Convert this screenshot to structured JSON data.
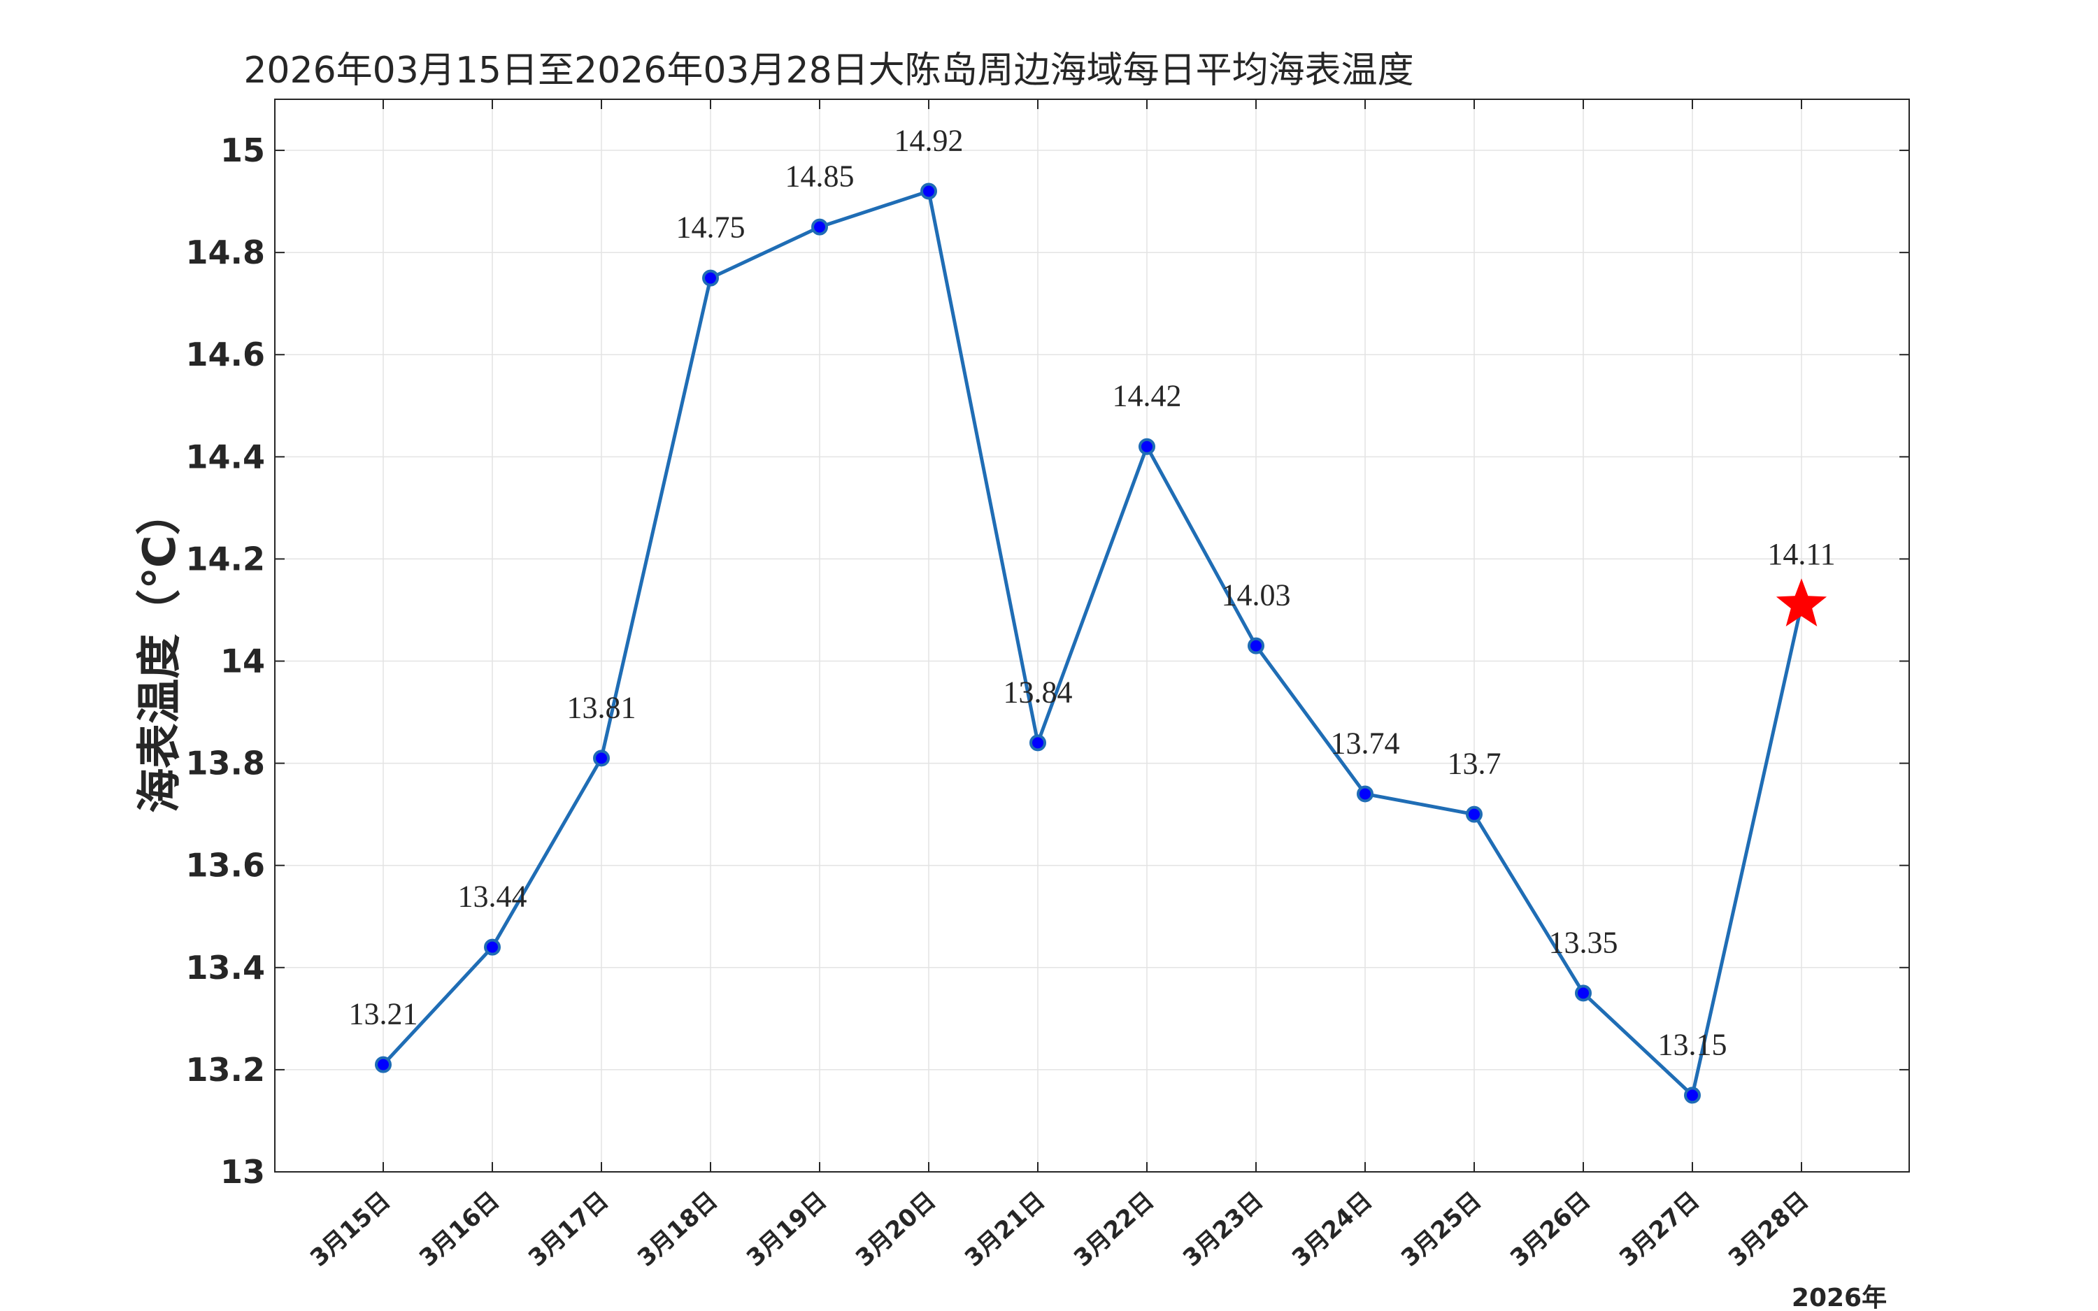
{
  "chart_data": {
    "type": "line",
    "title": "2026年03月15日至2026年03月28日大陈岛周边海域每日平均海表温度",
    "xlabel": "2026年",
    "ylabel": "海表温度（℃）",
    "categories": [
      "3月15日",
      "3月16日",
      "3月17日",
      "3月18日",
      "3月19日",
      "3月20日",
      "3月21日",
      "3月22日",
      "3月23日",
      "3月24日",
      "3月25日",
      "3月26日",
      "3月27日",
      "3月28日"
    ],
    "values": [
      13.21,
      13.44,
      13.81,
      14.75,
      14.85,
      14.92,
      13.84,
      14.42,
      14.03,
      13.74,
      13.7,
      13.35,
      13.15,
      14.11
    ],
    "data_labels": [
      "13.21",
      "13.44",
      "13.81",
      "14.75",
      "14.85",
      "14.92",
      "13.84",
      "14.42",
      "14.03",
      "13.74",
      "13.7",
      "13.35",
      "13.15",
      "14.11"
    ],
    "highlight_index": 13,
    "ylim": [
      13,
      15.1
    ],
    "yticks": [
      "13",
      "13.2",
      "13.4",
      "13.6",
      "13.8",
      "14",
      "14.2",
      "14.4",
      "14.6",
      "14.8",
      "15"
    ],
    "grid": true,
    "colors": {
      "line": "#1f6db5",
      "marker": "#0000ff",
      "marker_edge": "#1f6db5",
      "highlight": "#ff0000",
      "axis": "#262626",
      "grid": "#e3e3e3"
    }
  }
}
